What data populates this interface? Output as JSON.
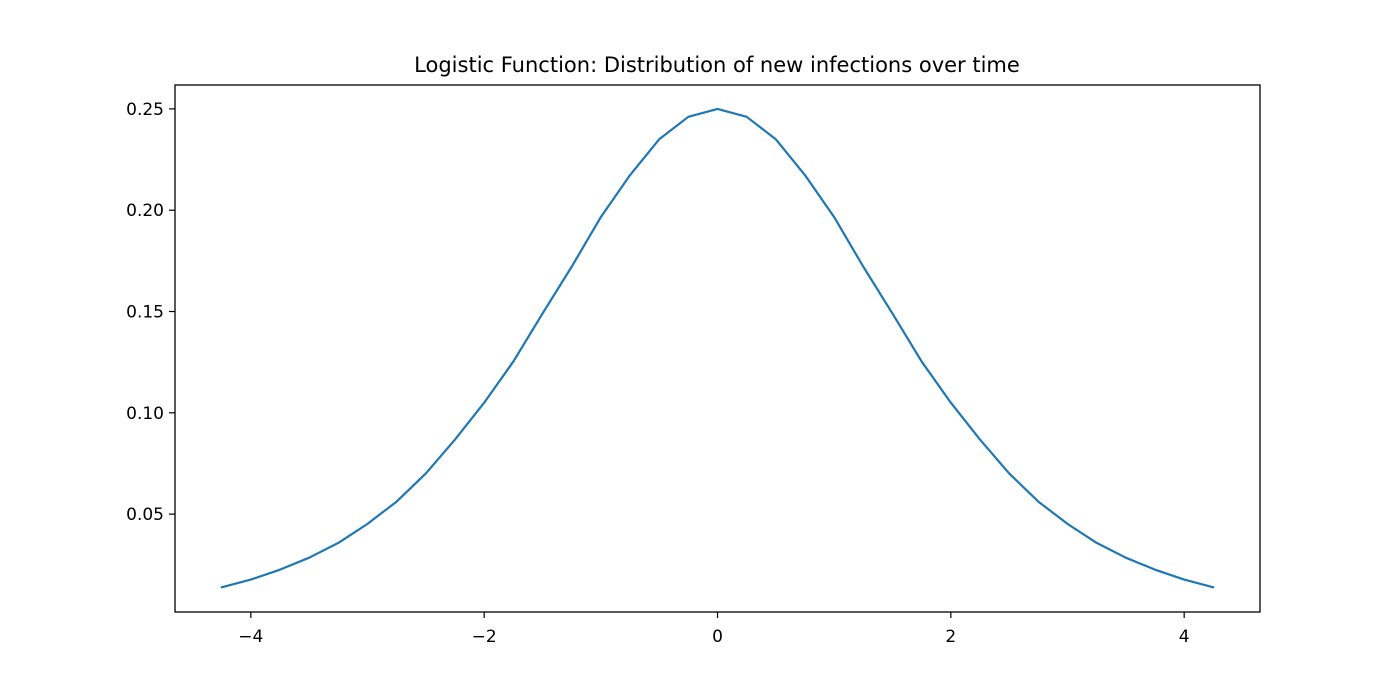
{
  "chart_data": {
    "type": "line",
    "title": "Logistic Function: Distribution of new infections over time",
    "xlabel": "",
    "ylabel": "",
    "xlim": [
      -4.65,
      4.65
    ],
    "ylim": [
      0.0017,
      0.2618
    ],
    "xticks": [
      {
        "value": -4,
        "label": "−4"
      },
      {
        "value": -2,
        "label": "−2"
      },
      {
        "value": 0,
        "label": "0"
      },
      {
        "value": 2,
        "label": "2"
      },
      {
        "value": 4,
        "label": "4"
      }
    ],
    "yticks": [
      {
        "value": 0.05,
        "label": "0.05"
      },
      {
        "value": 0.1,
        "label": "0.10"
      },
      {
        "value": 0.15,
        "label": "0.15"
      },
      {
        "value": 0.2,
        "label": "0.20"
      },
      {
        "value": 0.25,
        "label": "0.25"
      }
    ],
    "grid": false,
    "series": [
      {
        "color": "#1f77b4",
        "x": [
          -4.25,
          -4.0,
          -3.75,
          -3.5,
          -3.25,
          -3.0,
          -2.75,
          -2.5,
          -2.25,
          -2.0,
          -1.75,
          -1.5,
          -1.25,
          -1.0,
          -0.75,
          -0.5,
          -0.25,
          0.0,
          0.25,
          0.5,
          0.75,
          1.0,
          1.25,
          1.5,
          1.75,
          2.0,
          2.25,
          2.5,
          2.75,
          3.0,
          3.25,
          3.5,
          3.75,
          4.0,
          4.25
        ],
        "y": [
          0.0139,
          0.0177,
          0.0226,
          0.0285,
          0.0358,
          0.0452,
          0.0562,
          0.0701,
          0.0868,
          0.105,
          0.1253,
          0.149,
          0.1721,
          0.1966,
          0.2173,
          0.235,
          0.2461,
          0.25,
          0.2461,
          0.235,
          0.2173,
          0.1966,
          0.1721,
          0.149,
          0.1253,
          0.105,
          0.0868,
          0.0701,
          0.0562,
          0.0452,
          0.0358,
          0.0285,
          0.0226,
          0.0177,
          0.0139
        ]
      }
    ]
  }
}
